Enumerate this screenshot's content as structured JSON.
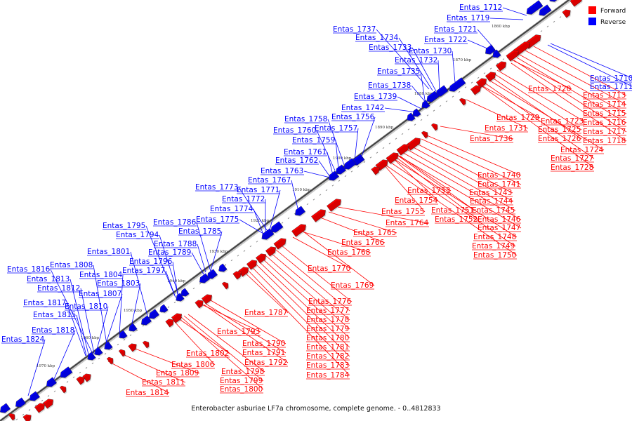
{
  "caption": "Enterobacter asburiae LF7a chromosome, complete genome. - 0..4812833",
  "colors": {
    "forward": "#ff0000",
    "reverse": "#0000ff"
  },
  "legend": [
    {
      "label": "Forward",
      "strand": "forward"
    },
    {
      "label": "Reverse",
      "strand": "reverse"
    }
  ],
  "ticks": [
    "1860 kbp",
    "1870 kbp",
    "1880 kbp",
    "1890 kbp",
    "1900 kbp",
    "1910 kbp",
    "1920 kbp",
    "1930 kbp",
    "1940 kbp",
    "1950 kbp",
    "1960 kbp",
    "1970 kbp"
  ],
  "reverse_genes": [
    "Entas_1712",
    "Entas_1719",
    "Entas_1721",
    "Entas_1722",
    "Entas_1730",
    "Entas_1737",
    "Entas_1734",
    "Entas_1733",
    "Entas_1732",
    "Entas_1735",
    "Entas_1738",
    "Entas_1739",
    "Entas_1742",
    "Entas_1756",
    "Entas_1758",
    "Entas_1757",
    "Entas_1760",
    "Entas_1759",
    "Entas_1761",
    "Entas_1762",
    "Entas_1763",
    "Entas_1767",
    "Entas_1773",
    "Entas_1771",
    "Entas_1772",
    "Entas_1774",
    "Entas_1775",
    "Entas_1786",
    "Entas_1795",
    "Entas_1794",
    "Entas_1785",
    "Entas_1788",
    "Entas_1789",
    "Entas_1801",
    "Entas_1796",
    "Entas_1808",
    "Entas_1797",
    "Entas_1816",
    "Entas_1804",
    "Entas_1813",
    "Entas_1803",
    "Entas_1812",
    "Entas_1807",
    "Entas_1817",
    "Entas_1810",
    "Entas_1815",
    "Entas_1818",
    "Entas_1824",
    "Entas_1710",
    "Entas_1711"
  ],
  "forward_genes": [
    "Entas_1720",
    "Entas_1713",
    "Entas_1714",
    "Entas_1715",
    "Entas_1716",
    "Entas_1717",
    "Entas_1718",
    "Entas_1723",
    "Entas_1725",
    "Entas_1726",
    "Entas_1724",
    "Entas_1727",
    "Entas_1728",
    "Entas_1729",
    "Entas_1731",
    "Entas_1736",
    "Entas_1740",
    "Entas_1741",
    "Entas_1743",
    "Entas_1744",
    "Entas_1745",
    "Entas_1746",
    "Entas_1747",
    "Entas_1748",
    "Entas_1749",
    "Entas_1750",
    "Entas_1753",
    "Entas_1754",
    "Entas_1751",
    "Entas_1752",
    "Entas_1755",
    "Entas_1764",
    "Entas_1765",
    "Entas_1766",
    "Entas_1768",
    "Entas_1770",
    "Entas_1769",
    "Entas_1776",
    "Entas_1777",
    "Entas_1778",
    "Entas_1779",
    "Entas_1780",
    "Entas_1781",
    "Entas_1782",
    "Entas_1783",
    "Entas_1784",
    "Entas_1787",
    "Entas_1793",
    "Entas_1790",
    "Entas_1791",
    "Entas_1792",
    "Entas_1802",
    "Entas_1806",
    "Entas_1798",
    "Entas_1799",
    "Entas_1800",
    "Entas_1809",
    "Entas_1811",
    "Entas_1814"
  ]
}
